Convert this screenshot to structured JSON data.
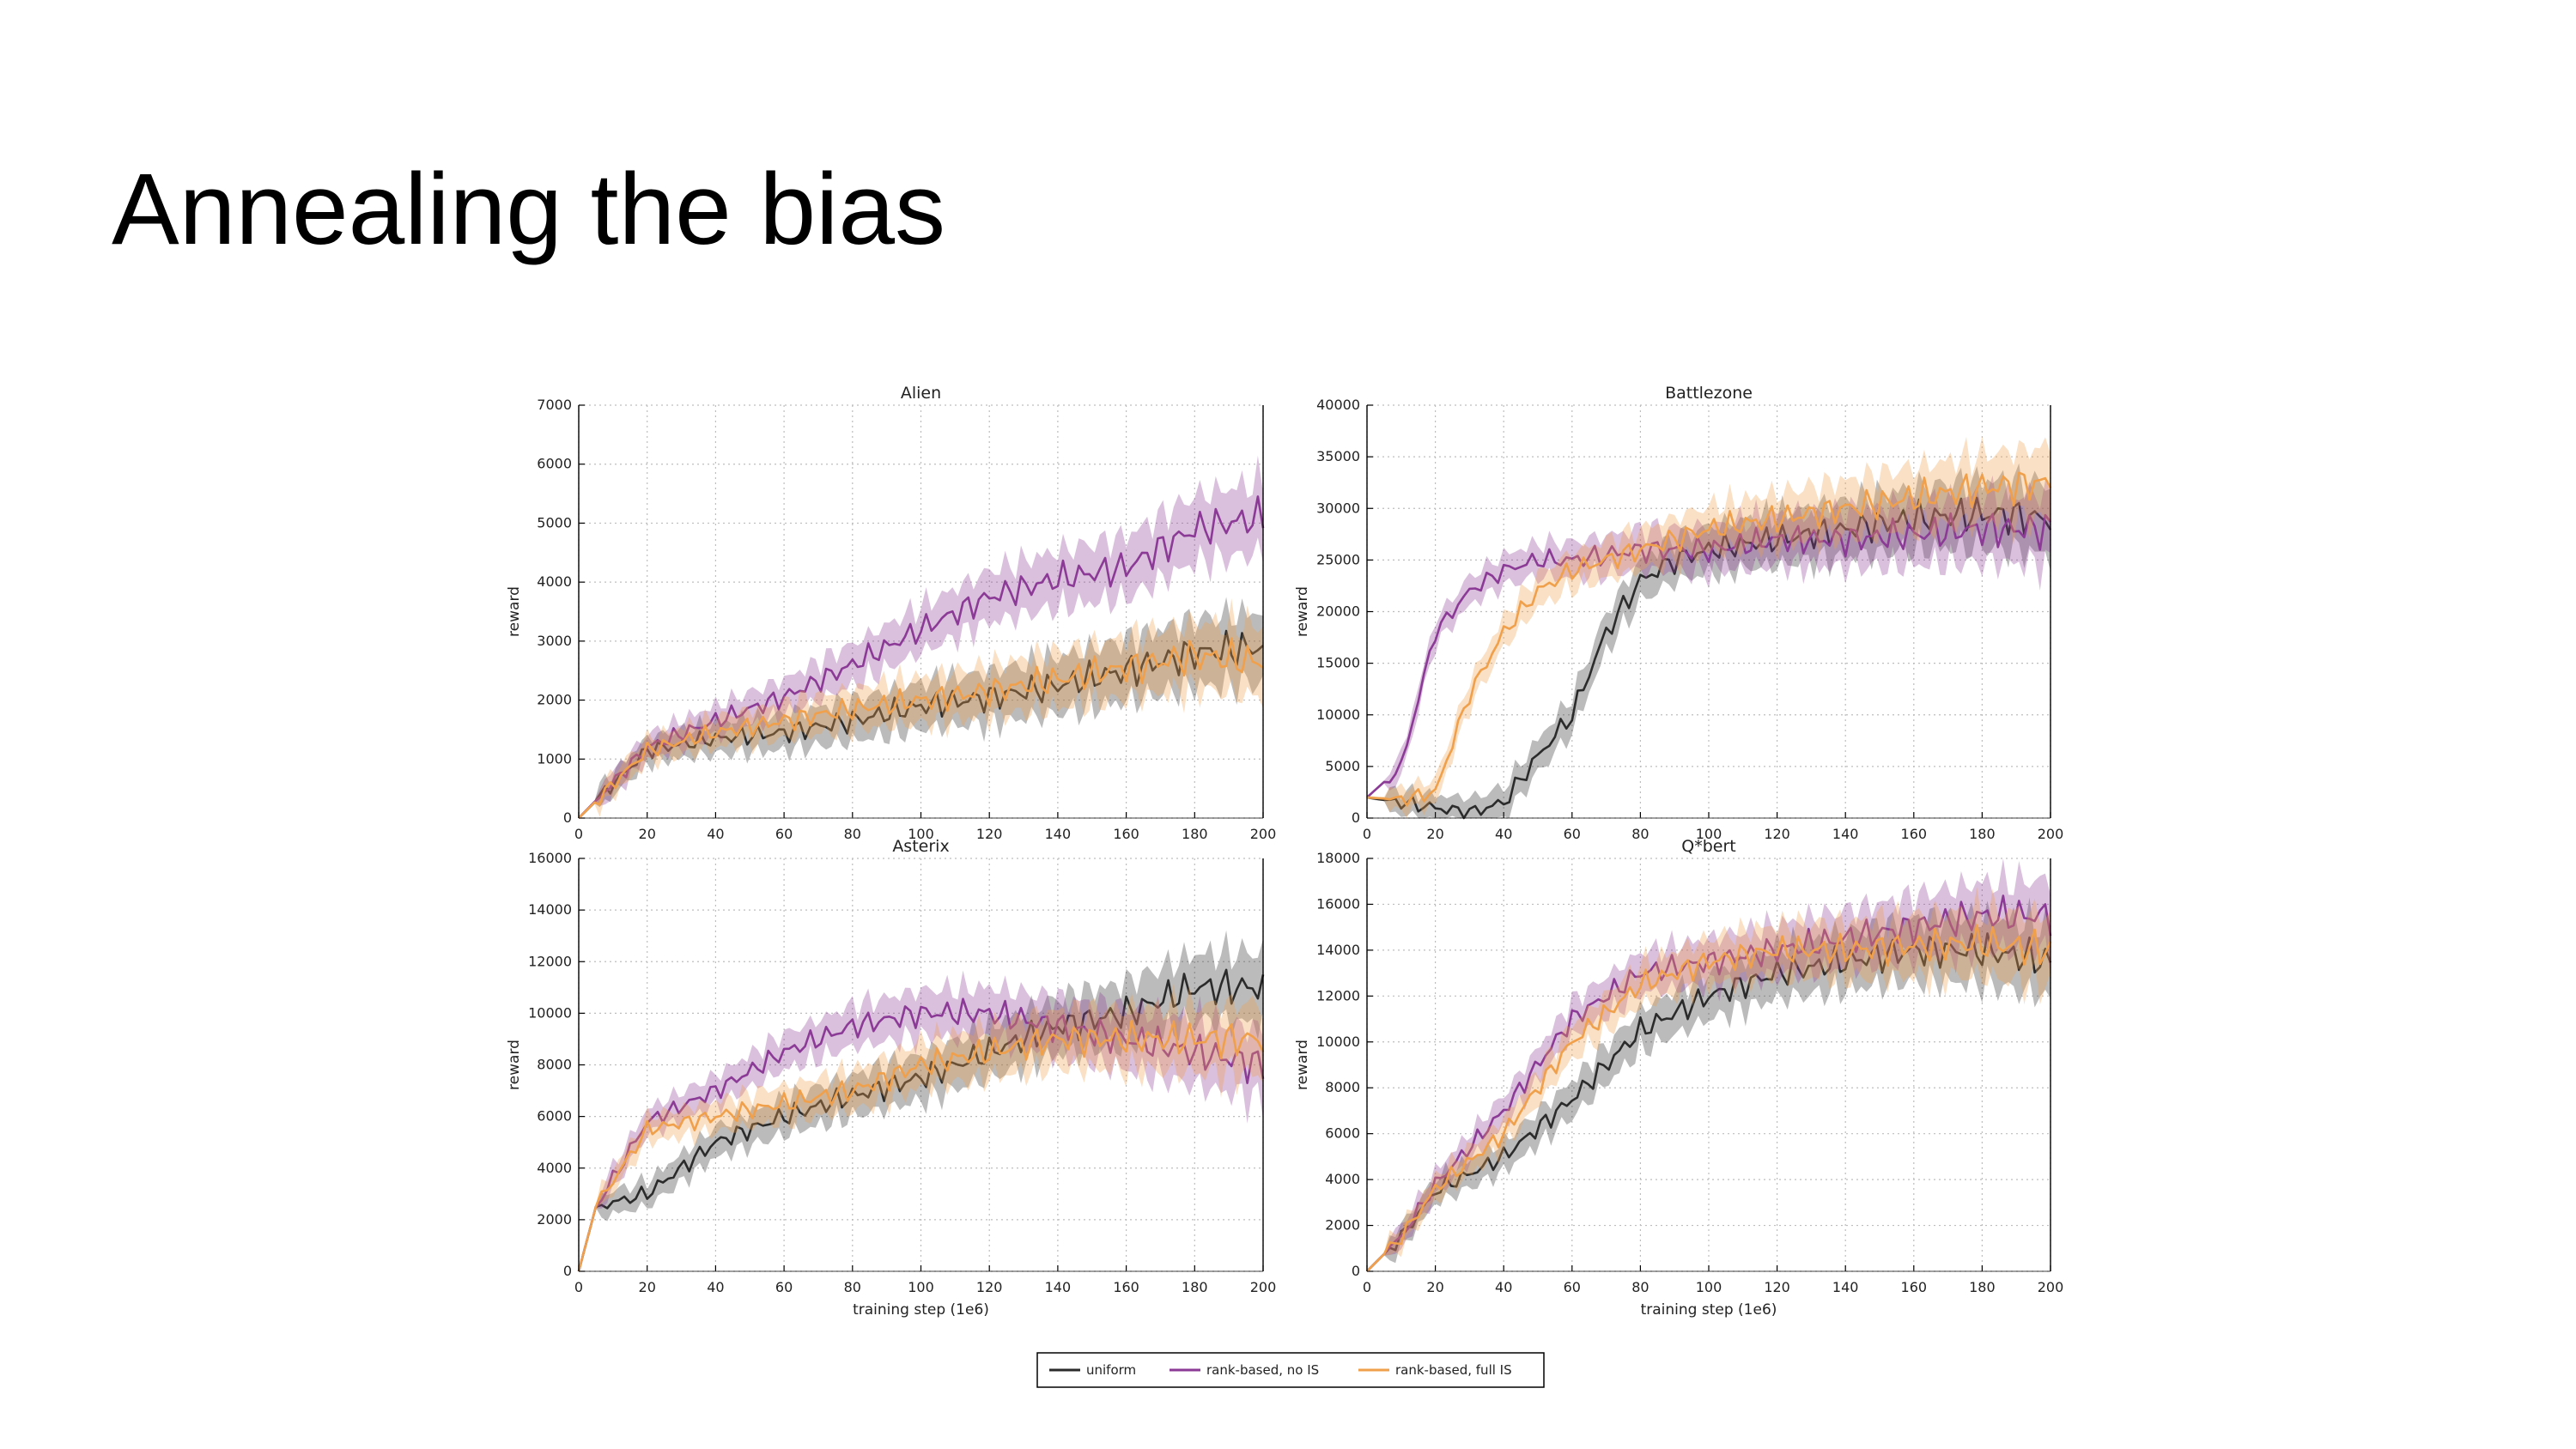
{
  "slide": {
    "title": "Annealing the bias"
  },
  "legend": [
    {
      "name": "uniform",
      "color": "#2b2b2b"
    },
    {
      "name": "rank-based, no IS",
      "color": "#8b3a96"
    },
    {
      "name": "rank-based, full IS",
      "color": "#f0a04b"
    }
  ],
  "chart_data": [
    {
      "type": "line",
      "title": "Alien",
      "xlabel": "",
      "ylabel": "reward",
      "xlim": [
        0,
        200
      ],
      "ylim": [
        0,
        7000
      ],
      "xticks": [
        "0",
        "20",
        "40",
        "60",
        "80",
        "100",
        "120",
        "140",
        "160",
        "180",
        "200"
      ],
      "yticks": [
        "0",
        "1000",
        "2000",
        "3000",
        "4000",
        "5000",
        "6000",
        "7000"
      ],
      "grid": true,
      "x": [
        0,
        20,
        40,
        60,
        80,
        100,
        120,
        140,
        160,
        180,
        200
      ],
      "series": [
        {
          "name": "uniform",
          "values": [
            0,
            1150,
            1350,
            1450,
            1650,
            1900,
            2050,
            2250,
            2500,
            2800,
            2900
          ]
        },
        {
          "name": "rank-based, no IS",
          "values": [
            0,
            1200,
            1650,
            2050,
            2600,
            3200,
            3750,
            4050,
            4250,
            4900,
            5100
          ]
        },
        {
          "name": "rank-based, full IS",
          "values": [
            0,
            1150,
            1450,
            1650,
            1850,
            2000,
            2150,
            2350,
            2550,
            2750,
            2650
          ]
        }
      ]
    },
    {
      "type": "line",
      "title": "Battlezone",
      "xlabel": "",
      "ylabel": "reward",
      "xlim": [
        0,
        200
      ],
      "ylim": [
        0,
        40000
      ],
      "xticks": [
        "0",
        "20",
        "40",
        "60",
        "80",
        "100",
        "120",
        "140",
        "160",
        "180",
        "200"
      ],
      "yticks": [
        "0",
        "5000",
        "10000",
        "15000",
        "20000",
        "25000",
        "30000",
        "35000",
        "40000"
      ],
      "grid": true,
      "x": [
        0,
        10,
        20,
        30,
        40,
        50,
        60,
        70,
        80,
        90,
        100,
        120,
        140,
        160,
        180,
        200
      ],
      "series": [
        {
          "name": "uniform",
          "values": [
            2000,
            1500,
            1000,
            500,
            1500,
            6000,
            10000,
            18000,
            23000,
            25000,
            26000,
            27000,
            28000,
            29000,
            29500,
            29000
          ]
        },
        {
          "name": "rank-based, no IS",
          "values": [
            2000,
            5000,
            18000,
            22000,
            24000,
            25000,
            25000,
            25500,
            26000,
            26000,
            26000,
            27000,
            27000,
            27500,
            28000,
            28000
          ]
        },
        {
          "name": "rank-based, full IS",
          "values": [
            2000,
            1800,
            2500,
            12000,
            18000,
            22000,
            24000,
            25000,
            26000,
            27000,
            28000,
            29000,
            30000,
            31000,
            32000,
            32500
          ]
        }
      ]
    },
    {
      "type": "line",
      "title": "Asterix",
      "xlabel": "training step (1e6)",
      "ylabel": "reward",
      "xlim": [
        0,
        200
      ],
      "ylim": [
        0,
        16000
      ],
      "xticks": [
        "0",
        "20",
        "40",
        "60",
        "80",
        "100",
        "120",
        "140",
        "160",
        "180",
        "200"
      ],
      "yticks": [
        "0",
        "2000",
        "4000",
        "6000",
        "8000",
        "10000",
        "12000",
        "14000",
        "16000"
      ],
      "grid": true,
      "x": [
        0,
        5,
        20,
        40,
        60,
        80,
        100,
        120,
        140,
        160,
        180,
        200
      ],
      "series": [
        {
          "name": "uniform",
          "values": [
            0,
            2500,
            3000,
            5000,
            6000,
            6800,
            7500,
            8500,
            9500,
            10000,
            11000,
            11000
          ]
        },
        {
          "name": "rank-based, no IS",
          "values": [
            0,
            2500,
            5800,
            7000,
            8500,
            9500,
            10000,
            10000,
            9500,
            9000,
            8500,
            8000
          ]
        },
        {
          "name": "rank-based, full IS",
          "values": [
            0,
            2500,
            5500,
            6000,
            6500,
            7000,
            8000,
            8500,
            9000,
            9000,
            9000,
            9000
          ]
        }
      ]
    },
    {
      "type": "line",
      "title": "Q*bert",
      "xlabel": "training step (1e6)",
      "ylabel": "reward",
      "xlim": [
        0,
        200
      ],
      "ylim": [
        0,
        18000
      ],
      "xticks": [
        "0",
        "20",
        "40",
        "60",
        "80",
        "100",
        "120",
        "140",
        "160",
        "180",
        "200"
      ],
      "yticks": [
        "0",
        "2000",
        "4000",
        "6000",
        "8000",
        "10000",
        "12000",
        "14000",
        "16000",
        "18000"
      ],
      "grid": true,
      "x": [
        0,
        10,
        20,
        40,
        60,
        80,
        100,
        120,
        140,
        160,
        180,
        200
      ],
      "series": [
        {
          "name": "uniform",
          "values": [
            0,
            1500,
            3500,
            5000,
            7500,
            10500,
            12000,
            13000,
            13500,
            14000,
            14000,
            13500
          ]
        },
        {
          "name": "rank-based, no IS",
          "values": [
            0,
            1500,
            3800,
            7000,
            11000,
            13000,
            13500,
            14000,
            14500,
            15000,
            15500,
            15500
          ]
        },
        {
          "name": "rank-based, full IS",
          "values": [
            0,
            1500,
            3600,
            6000,
            10000,
            12500,
            13500,
            14000,
            14000,
            14200,
            14300,
            14000
          ]
        }
      ]
    }
  ]
}
